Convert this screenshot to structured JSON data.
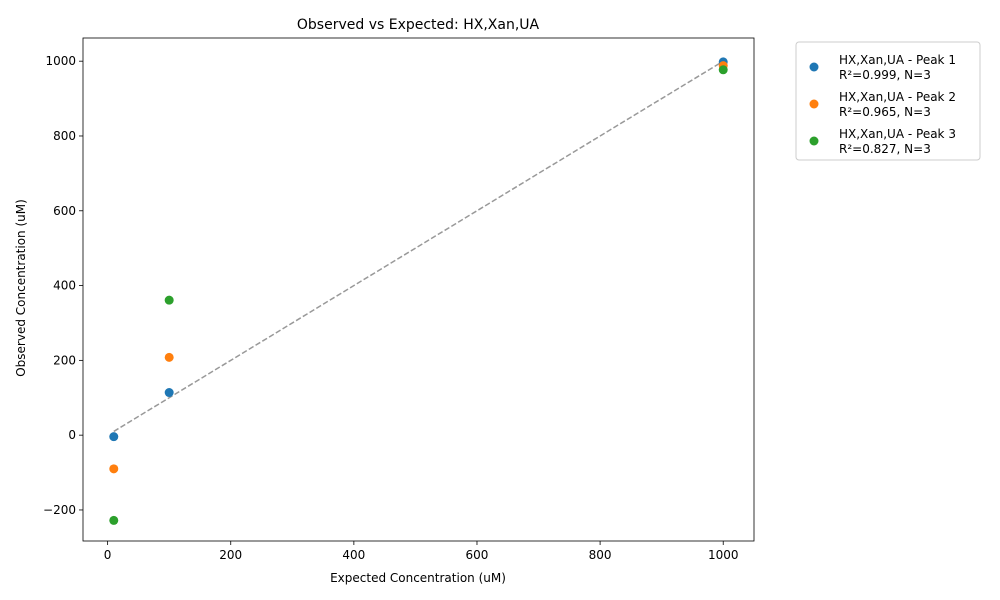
{
  "chart_data": {
    "type": "scatter",
    "title": "Observed vs Expected: HX,Xan,UA",
    "xlabel": "Expected Concentration (uM)",
    "ylabel": "Observed Concentration (uM)",
    "xlim": [
      -40,
      1050
    ],
    "ylim": [
      -283,
      1062
    ],
    "x_ticks": [
      0,
      200,
      400,
      600,
      800,
      1000
    ],
    "y_ticks": [
      -200,
      0,
      200,
      400,
      600,
      800,
      1000
    ],
    "x_tick_labels": [
      "0",
      "200",
      "400",
      "600",
      "800",
      "1000"
    ],
    "y_tick_labels": [
      "−200",
      "0",
      "200",
      "400",
      "600",
      "800",
      "1000"
    ],
    "grid": false,
    "legend_placement": "outside-top-right",
    "reference_line": {
      "x": [
        10,
        1000
      ],
      "y": [
        10,
        1000
      ],
      "style": "dashed",
      "color": "#999999"
    },
    "series": [
      {
        "name": "HX,Xan,UA - Peak 1",
        "stat": "R²=0.999, N=3",
        "color": "#1f77b4",
        "x": [
          10,
          100,
          1000
        ],
        "y": [
          -4,
          114,
          998
        ]
      },
      {
        "name": "HX,Xan,UA - Peak 2",
        "stat": "R²=0.965, N=3",
        "color": "#ff7f0e",
        "x": [
          10,
          100,
          1000
        ],
        "y": [
          -90,
          208,
          988
        ]
      },
      {
        "name": "HX,Xan,UA - Peak 3",
        "stat": "R²=0.827, N=3",
        "color": "#2ca02c",
        "x": [
          10,
          100,
          1000
        ],
        "y": [
          -228,
          361,
          977
        ]
      }
    ]
  }
}
